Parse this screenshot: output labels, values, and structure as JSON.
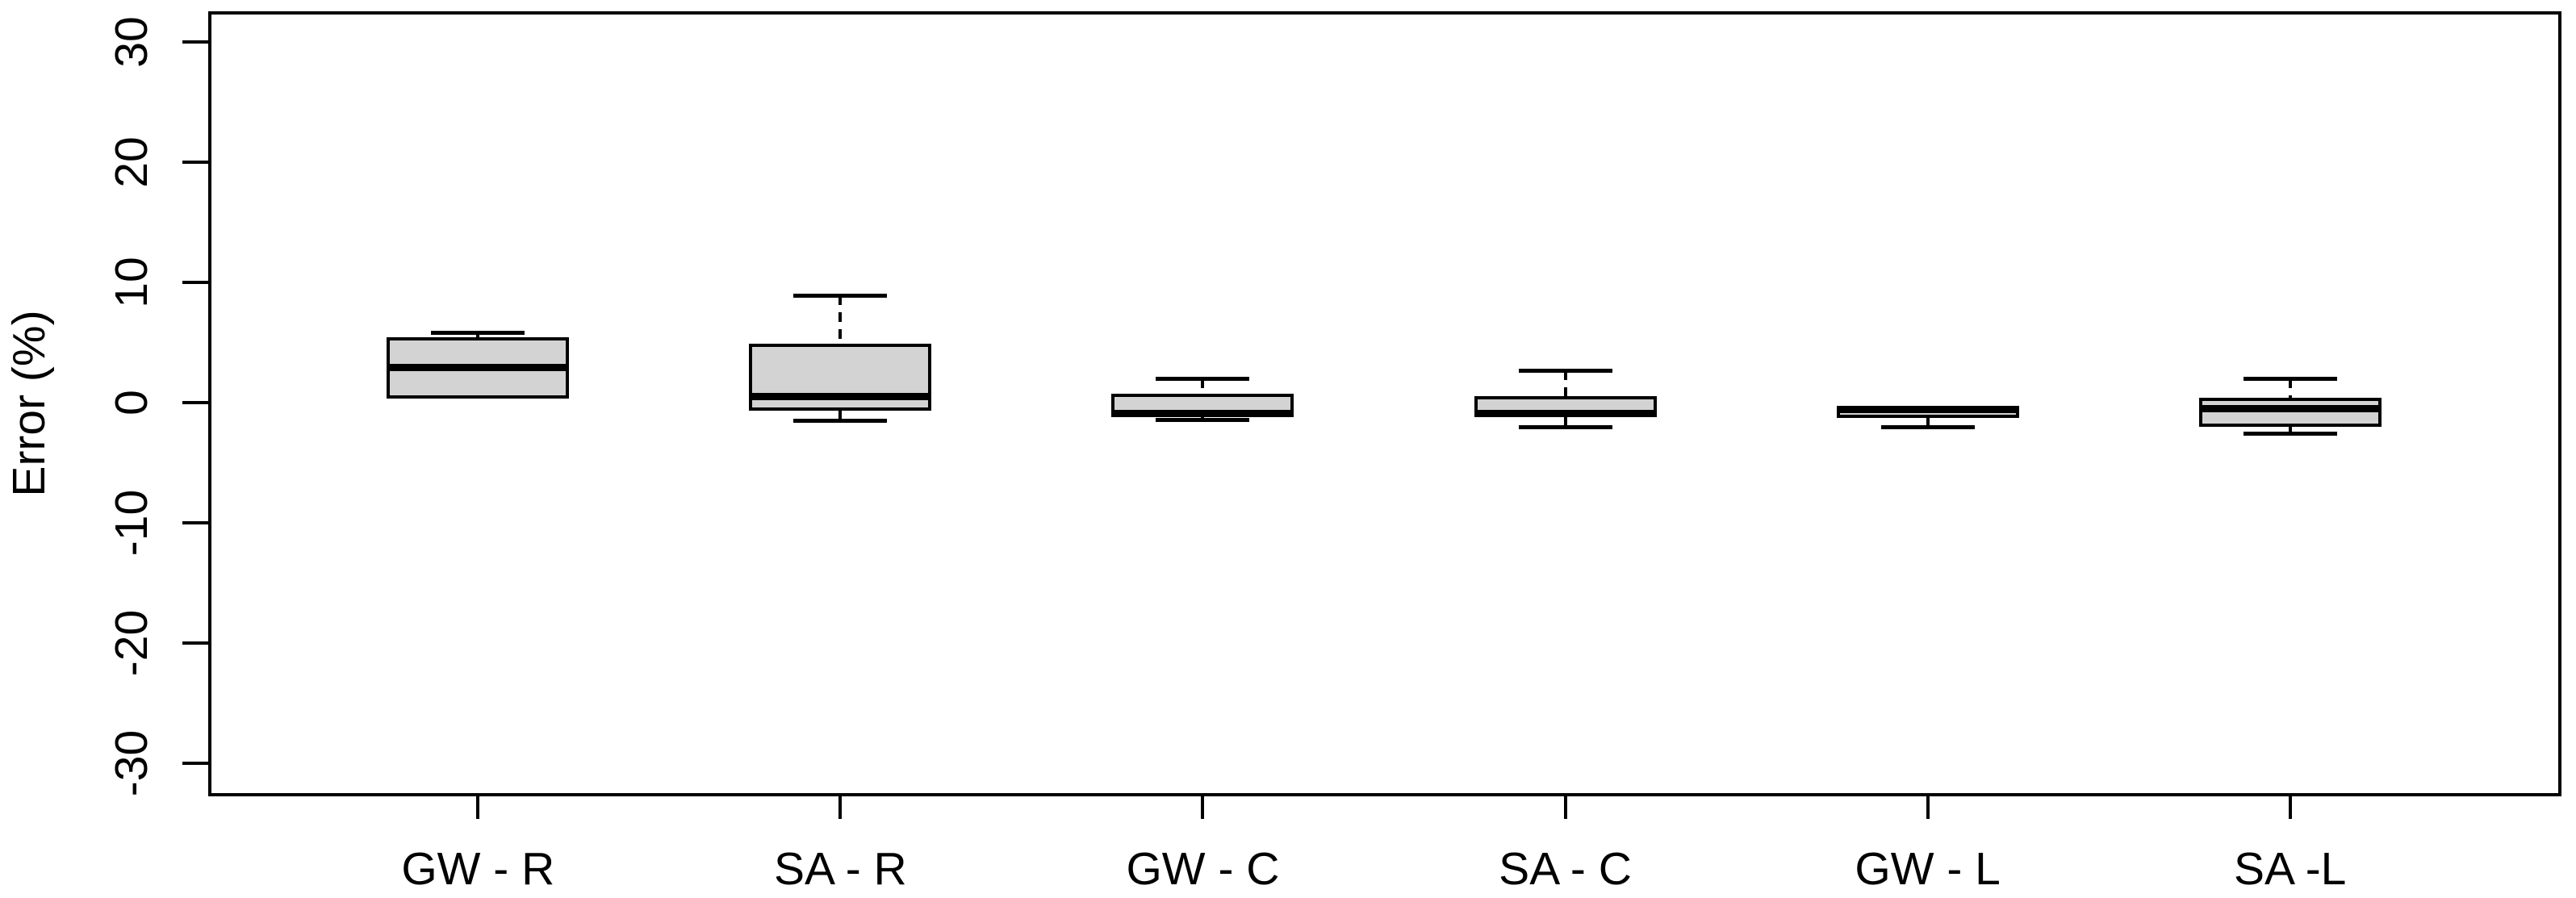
{
  "chart_data": {
    "type": "boxplot",
    "title": "",
    "xlabel": "",
    "ylabel": "Error (%)",
    "ylim": [
      -32.5,
      32.4
    ],
    "yticks": [
      30,
      20,
      10,
      0,
      -10,
      -20,
      -30
    ],
    "grid": false,
    "legend": false,
    "box_fill": "#d3d3d3",
    "line_color": "#000000",
    "background": "#ffffff",
    "categories": [
      "GW - R",
      "SA - R",
      "GW - C",
      "SA - C",
      "GW - L",
      "SA -L"
    ],
    "series": [
      {
        "category": "GW - R",
        "lower_whisker": 0.3,
        "q1": 0.3,
        "median": 2.9,
        "q3": 5.4,
        "upper_whisker": 5.8
      },
      {
        "category": "SA - R",
        "lower_whisker": -1.5,
        "q1": -0.7,
        "median": 0.5,
        "q3": 4.9,
        "upper_whisker": 8.9
      },
      {
        "category": "GW - C",
        "lower_whisker": -1.4,
        "q1": -1.2,
        "median": -0.9,
        "q3": 0.7,
        "upper_whisker": 2.0
      },
      {
        "category": "SA - C",
        "lower_whisker": -2.0,
        "q1": -1.2,
        "median": -0.9,
        "q3": 0.5,
        "upper_whisker": 2.7
      },
      {
        "category": "GW - L",
        "lower_whisker": -2.0,
        "q1": -1.3,
        "median": -0.6,
        "q3": -0.5,
        "upper_whisker": -0.5
      },
      {
        "category": "SA -L",
        "lower_whisker": -2.6,
        "q1": -2.0,
        "median": -0.5,
        "q3": 0.4,
        "upper_whisker": 2.0
      }
    ]
  }
}
